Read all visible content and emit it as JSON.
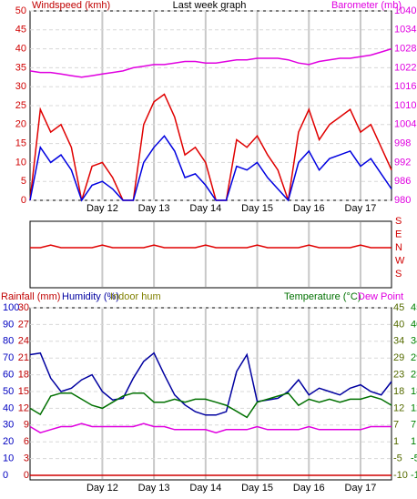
{
  "chart_data": [
    {
      "type": "line",
      "title": "Last week graph",
      "y_label": "Windspeed (kmh)",
      "y2_label": "Barometer (mb)",
      "x": [
        10.6,
        10.8,
        11.0,
        11.2,
        11.4,
        11.6,
        11.8,
        12.0,
        12.2,
        12.4,
        12.6,
        12.8,
        13.0,
        13.2,
        13.4,
        13.6,
        13.8,
        14.0,
        14.2,
        14.4,
        14.6,
        14.8,
        15.0,
        15.2,
        15.4,
        15.6,
        15.8,
        16.0,
        16.2,
        16.4,
        16.6,
        16.8,
        17.0,
        17.2,
        17.4,
        17.6
      ],
      "xlim": [
        10.6,
        17.6
      ],
      "xticks": [
        {
          "value": 12,
          "label": "Day 12"
        },
        {
          "value": 13,
          "label": "Day 13"
        },
        {
          "value": 14,
          "label": "Day 14"
        },
        {
          "value": 15,
          "label": "Day 15"
        },
        {
          "value": 16,
          "label": "Day 16"
        },
        {
          "value": 17,
          "label": "Day 17"
        }
      ],
      "ylim": [
        0,
        50
      ],
      "yticks": [
        0,
        5,
        10,
        15,
        20,
        25,
        30,
        35,
        40,
        45,
        50
      ],
      "y2lim": [
        980,
        1040
      ],
      "y2ticks": [
        980,
        986,
        992,
        998,
        1004,
        1010,
        1016,
        1022,
        1028,
        1034,
        1040
      ],
      "grid": true,
      "series": [
        {
          "color": "#e00000",
          "values": [
            0,
            24,
            18,
            20,
            14,
            0,
            9,
            10,
            6,
            0,
            0,
            20,
            26,
            28,
            22,
            12,
            14,
            10,
            0,
            0,
            16,
            14,
            17,
            12,
            8,
            0,
            18,
            24,
            16,
            20,
            22,
            24,
            18,
            20,
            14,
            8
          ]
        },
        {
          "color": "#0000e0",
          "values": [
            0,
            14,
            10,
            12,
            8,
            0,
            4,
            5,
            3,
            0,
            0,
            10,
            14,
            17,
            13,
            6,
            7,
            4,
            0,
            0,
            9,
            8,
            10,
            6,
            3,
            0,
            10,
            13,
            8,
            11,
            12,
            13,
            9,
            11,
            7,
            3
          ]
        },
        {
          "color": "#e000e0",
          "axis": "y2",
          "values": [
            1021,
            1020.5,
            1020.5,
            1020,
            1019.5,
            1019,
            1019.5,
            1020,
            1020.5,
            1021,
            1022,
            1022.5,
            1023,
            1023,
            1023.5,
            1024,
            1024,
            1023.5,
            1023.5,
            1024,
            1024.5,
            1024.5,
            1025,
            1025,
            1025,
            1024.5,
            1023.5,
            1023,
            1024,
            1024.5,
            1025,
            1025,
            1025.5,
            1026,
            1027,
            1028
          ]
        }
      ]
    },
    {
      "type": "line",
      "x": [
        10.6,
        10.8,
        11.0,
        11.2,
        11.4,
        11.6,
        11.8,
        12.0,
        12.2,
        12.4,
        12.6,
        12.8,
        13.0,
        13.2,
        13.4,
        13.6,
        13.8,
        14.0,
        14.2,
        14.4,
        14.6,
        14.8,
        15.0,
        15.2,
        15.4,
        15.6,
        15.8,
        16.0,
        16.2,
        16.4,
        16.6,
        16.8,
        17.0,
        17.2,
        17.4,
        17.6
      ],
      "xlim": [
        10.6,
        17.6
      ],
      "xticks": [
        12,
        13,
        14,
        15,
        16,
        17
      ],
      "ylim": [
        0,
        4
      ],
      "yticks": [
        {
          "value": 0,
          "label": "S"
        },
        {
          "value": 1,
          "label": "W"
        },
        {
          "value": 2,
          "label": "N"
        },
        {
          "value": 3,
          "label": "E"
        },
        {
          "value": 4,
          "label": "S"
        }
      ],
      "series": [
        {
          "color": "#e00000",
          "values": [
            2,
            2,
            2.2,
            2,
            2,
            2,
            2,
            2.2,
            2,
            2,
            2,
            2,
            2.2,
            2,
            2,
            2,
            2,
            2.2,
            2,
            2,
            2,
            2,
            2.2,
            2,
            2,
            2,
            2,
            2.2,
            2,
            2,
            2,
            2,
            2.2,
            2,
            2,
            2
          ]
        }
      ]
    },
    {
      "type": "line",
      "note": "Indoor hum",
      "x": [
        10.6,
        10.8,
        11.0,
        11.2,
        11.4,
        11.6,
        11.8,
        12.0,
        12.2,
        12.4,
        12.6,
        12.8,
        13.0,
        13.2,
        13.4,
        13.6,
        13.8,
        14.0,
        14.2,
        14.4,
        14.6,
        14.8,
        15.0,
        15.2,
        15.4,
        15.6,
        15.8,
        16.0,
        16.2,
        16.4,
        16.6,
        16.8,
        17.0,
        17.2,
        17.4,
        17.6
      ],
      "xlim": [
        10.6,
        17.6
      ],
      "xticks": [
        {
          "value": 12,
          "label": "Day 12"
        },
        {
          "value": 13,
          "label": "Day 13"
        },
        {
          "value": 14,
          "label": "Day 14"
        },
        {
          "value": 15,
          "label": "Day 15"
        },
        {
          "value": 16,
          "label": "Day 16"
        },
        {
          "value": 17,
          "label": "Day 17"
        }
      ],
      "ylim": [
        0,
        100
      ],
      "yticks": [
        0,
        10,
        20,
        30,
        40,
        50,
        60,
        70,
        80,
        90,
        100
      ],
      "y3lim": [
        0,
        30
      ],
      "y3ticks": [
        0,
        3,
        6,
        9,
        12,
        15,
        18,
        21,
        24,
        27,
        30
      ],
      "y2lim": [
        -10,
        45
      ],
      "y2ticks": [
        -10,
        {
          "value": -4.5,
          "label": "-5"
        },
        1,
        {
          "value": 6.5,
          "label": "7"
        },
        12,
        {
          "value": 17.5,
          "label": "18"
        },
        23,
        {
          "value": 28.5,
          "label": "29"
        },
        34,
        {
          "value": 39.5,
          "label": "40"
        },
        45
      ],
      "grid": true,
      "series": [
        {
          "name": "Rainfall (mm)",
          "color": "#d00000",
          "axis": "y3",
          "values": [
            0,
            0,
            0,
            0,
            0,
            0,
            0,
            0,
            0,
            0,
            0,
            0,
            0,
            0,
            0,
            0,
            0,
            0,
            0,
            0,
            0,
            0,
            0,
            0,
            0,
            0,
            0,
            0,
            0,
            0,
            0,
            0,
            0,
            0,
            0,
            0
          ]
        },
        {
          "name": "Humidity (%)",
          "color": "#0000a0",
          "values": [
            72,
            73,
            58,
            50,
            52,
            57,
            60,
            50,
            45,
            46,
            58,
            68,
            73,
            60,
            48,
            42,
            38,
            36,
            36,
            38,
            62,
            72,
            44,
            45,
            46,
            50,
            57,
            48,
            52,
            50,
            48,
            52,
            54,
            50,
            48,
            56
          ]
        },
        {
          "name": "Temperature (°C)",
          "color": "#007000",
          "axis": "y2",
          "values": [
            12,
            10,
            16,
            17,
            17,
            15,
            13,
            12,
            14,
            16,
            17,
            17,
            14,
            14,
            15,
            14,
            15,
            15,
            14,
            13,
            11,
            9,
            14,
            15,
            16,
            17,
            13,
            15,
            14,
            15,
            14,
            15,
            15,
            16,
            15,
            13
          ]
        },
        {
          "name": "Dew Point",
          "color": "#e000e0",
          "axis": "y2",
          "values": [
            6,
            4,
            5,
            6,
            6,
            7,
            6,
            6,
            6,
            6,
            6,
            7,
            6,
            6,
            5,
            5,
            5,
            5,
            4,
            5,
            5,
            5,
            6,
            5,
            5,
            5,
            5,
            6,
            5,
            5,
            5,
            5,
            5,
            6,
            6,
            6
          ]
        }
      ]
    }
  ]
}
